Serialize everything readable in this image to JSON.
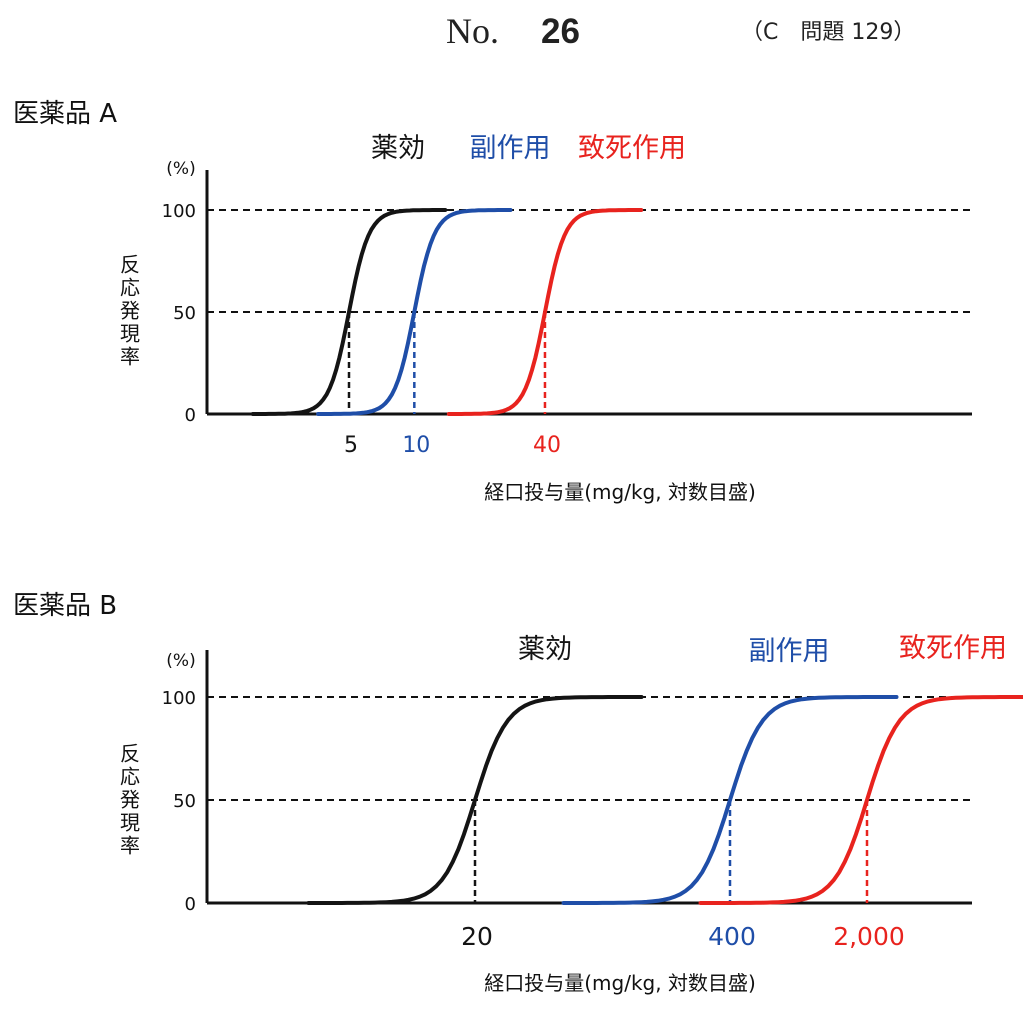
{
  "header": {
    "no": "No.",
    "number": "26",
    "question": "（C　問題 129）"
  },
  "colors": {
    "efficacy": "#141414",
    "side_effect": "#1f4ea8",
    "lethal": "#e8231e"
  },
  "chart_data": [
    {
      "type": "line",
      "title": "医薬品 A",
      "ylabel": "反応発現率",
      "yunit": "(%)",
      "xlabel": "経口投与量(mg/kg, 対数目盛)",
      "x_scale": "log",
      "yticks": [
        "0",
        "50",
        "100"
      ],
      "ylim": [
        0,
        100
      ],
      "grid": "dashed lines at 50 and 100",
      "series": [
        {
          "name": "薬効",
          "color": "#141414",
          "ed50": 5,
          "ed50_label": "5"
        },
        {
          "name": "副作用",
          "color": "#1f4ea8",
          "ed50": 10,
          "ed50_label": "10"
        },
        {
          "name": "致死作用",
          "color": "#e8231e",
          "ed50": 40,
          "ed50_label": "40"
        }
      ]
    },
    {
      "type": "line",
      "title": "医薬品 B",
      "ylabel": "反応発現率",
      "yunit": "(%)",
      "xlabel": "経口投与量(mg/kg, 対数目盛)",
      "x_scale": "log",
      "yticks": [
        "0",
        "50",
        "100"
      ],
      "ylim": [
        0,
        100
      ],
      "grid": "dashed lines at 50 and 100",
      "series": [
        {
          "name": "薬効",
          "color": "#141414",
          "ed50": 20,
          "ed50_label": "20"
        },
        {
          "name": "副作用",
          "color": "#1f4ea8",
          "ed50": 400,
          "ed50_label": "400"
        },
        {
          "name": "致死作用",
          "color": "#e8231e",
          "ed50": 2000,
          "ed50_label": "2,000"
        }
      ]
    }
  ]
}
